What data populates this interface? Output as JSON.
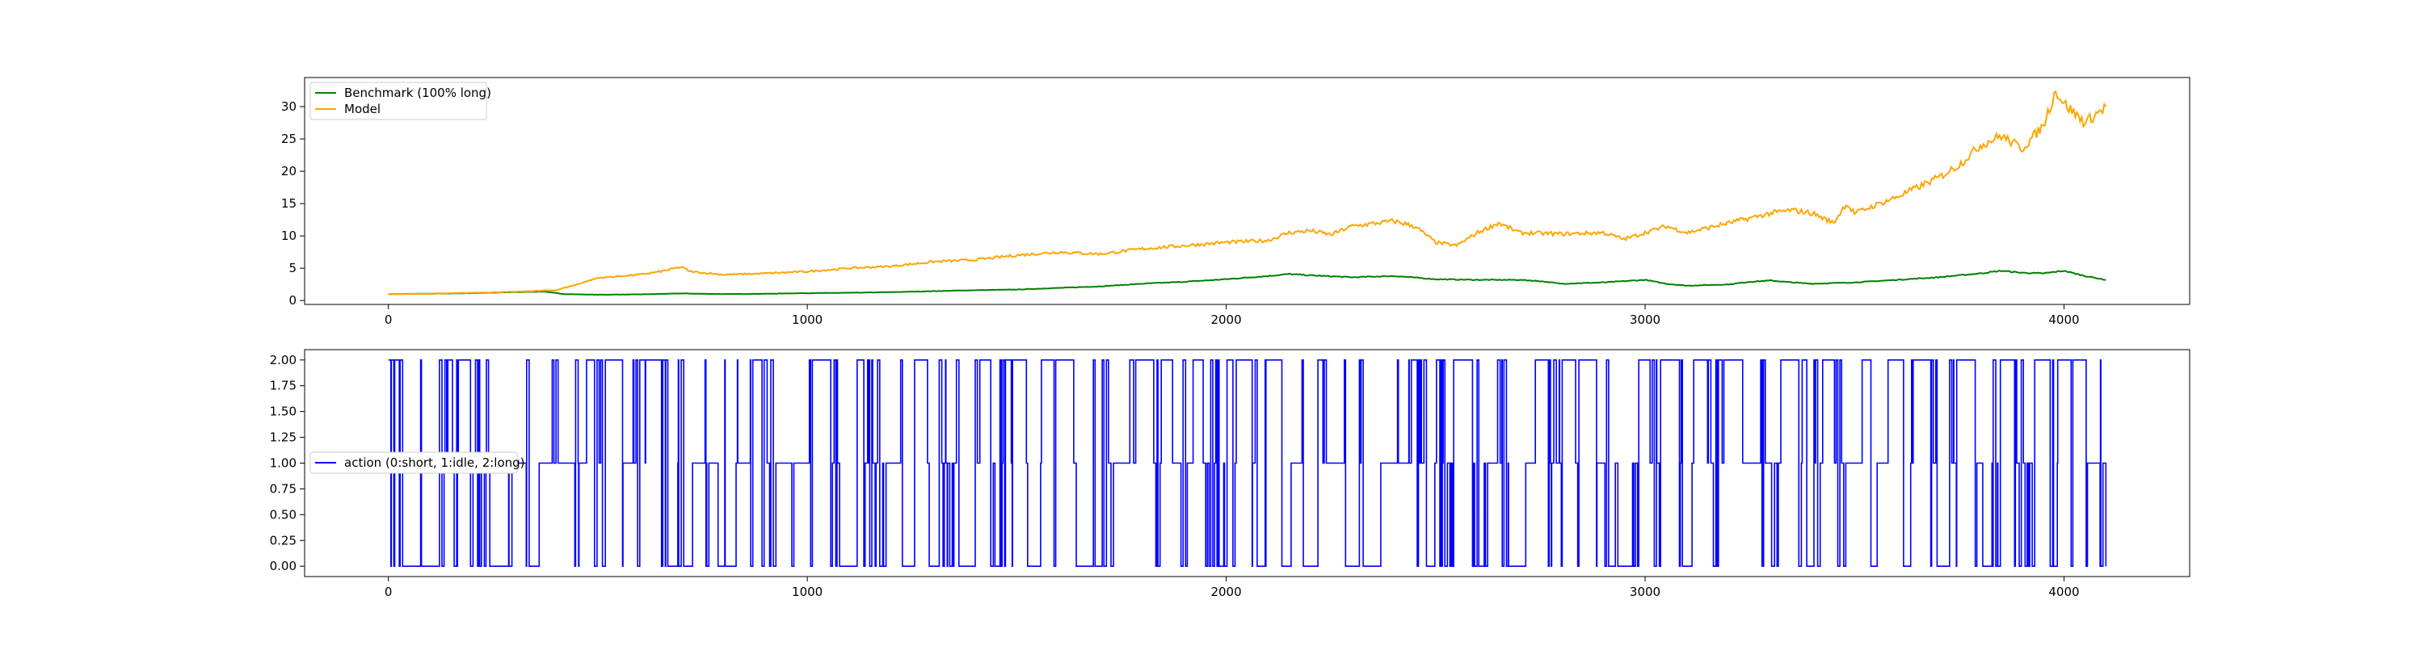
{
  "chart_data": [
    {
      "type": "line",
      "x_range": [
        0,
        4100
      ],
      "xlim": [
        -200,
        4300
      ],
      "ylim": [
        -0.6,
        34.5
      ],
      "xticks": [
        0,
        1000,
        2000,
        3000,
        4000
      ],
      "yticks": [
        0,
        5,
        10,
        15,
        20,
        25,
        30
      ],
      "xlabel": "",
      "ylabel": "",
      "legend_placement": "upper-left",
      "series": [
        {
          "name": "Benchmark (100% long)",
          "color": "#008000",
          "points": [
            [
              0,
              1.0
            ],
            [
              100,
              1.05
            ],
            [
              200,
              1.15
            ],
            [
              300,
              1.3
            ],
            [
              370,
              1.4
            ],
            [
              420,
              1.0
            ],
            [
              500,
              0.9
            ],
            [
              600,
              0.95
            ],
            [
              700,
              1.1
            ],
            [
              800,
              1.0
            ],
            [
              900,
              1.05
            ],
            [
              1000,
              1.15
            ],
            [
              1100,
              1.2
            ],
            [
              1200,
              1.3
            ],
            [
              1300,
              1.45
            ],
            [
              1400,
              1.6
            ],
            [
              1500,
              1.7
            ],
            [
              1600,
              1.95
            ],
            [
              1700,
              2.2
            ],
            [
              1800,
              2.6
            ],
            [
              1900,
              2.9
            ],
            [
              2000,
              3.3
            ],
            [
              2100,
              3.8
            ],
            [
              2150,
              4.1
            ],
            [
              2200,
              3.9
            ],
            [
              2300,
              3.6
            ],
            [
              2400,
              3.8
            ],
            [
              2500,
              3.3
            ],
            [
              2600,
              3.2
            ],
            [
              2700,
              3.2
            ],
            [
              2750,
              3.0
            ],
            [
              2800,
              2.6
            ],
            [
              2900,
              2.8
            ],
            [
              3000,
              3.2
            ],
            [
              3050,
              2.6
            ],
            [
              3100,
              2.3
            ],
            [
              3200,
              2.5
            ],
            [
              3250,
              2.9
            ],
            [
              3300,
              3.1
            ],
            [
              3350,
              2.8
            ],
            [
              3400,
              2.6
            ],
            [
              3500,
              2.8
            ],
            [
              3600,
              3.2
            ],
            [
              3700,
              3.6
            ],
            [
              3800,
              4.2
            ],
            [
              3850,
              4.6
            ],
            [
              3900,
              4.3
            ],
            [
              3950,
              4.2
            ],
            [
              4000,
              4.6
            ],
            [
              4050,
              3.8
            ],
            [
              4100,
              3.2
            ]
          ]
        },
        {
          "name": "Model",
          "color": "#ffa500",
          "points": [
            [
              0,
              1.0
            ],
            [
              100,
              1.05
            ],
            [
              200,
              1.2
            ],
            [
              300,
              1.35
            ],
            [
              400,
              1.6
            ],
            [
              450,
              2.5
            ],
            [
              500,
              3.5
            ],
            [
              600,
              4.0
            ],
            [
              650,
              4.5
            ],
            [
              700,
              5.2
            ],
            [
              720,
              4.5
            ],
            [
              800,
              4.0
            ],
            [
              900,
              4.2
            ],
            [
              1000,
              4.5
            ],
            [
              1100,
              5.0
            ],
            [
              1200,
              5.3
            ],
            [
              1300,
              6.0
            ],
            [
              1400,
              6.3
            ],
            [
              1500,
              7.0
            ],
            [
              1600,
              7.5
            ],
            [
              1700,
              7.2
            ],
            [
              1800,
              8.0
            ],
            [
              1900,
              8.5
            ],
            [
              2000,
              9.0
            ],
            [
              2100,
              9.3
            ],
            [
              2150,
              10.5
            ],
            [
              2200,
              10.8
            ],
            [
              2250,
              10.2
            ],
            [
              2300,
              11.5
            ],
            [
              2400,
              12.3
            ],
            [
              2450,
              11.5
            ],
            [
              2500,
              9.0
            ],
            [
              2550,
              8.5
            ],
            [
              2600,
              10.5
            ],
            [
              2650,
              12.0
            ],
            [
              2700,
              10.5
            ],
            [
              2800,
              10.3
            ],
            [
              2900,
              10.5
            ],
            [
              2950,
              9.5
            ],
            [
              3000,
              10.5
            ],
            [
              3050,
              11.5
            ],
            [
              3100,
              10.5
            ],
            [
              3200,
              12.0
            ],
            [
              3300,
              13.5
            ],
            [
              3350,
              14.0
            ],
            [
              3400,
              13.5
            ],
            [
              3450,
              12.0
            ],
            [
              3480,
              15.0
            ],
            [
              3500,
              13.5
            ],
            [
              3600,
              16.0
            ],
            [
              3700,
              19.0
            ],
            [
              3750,
              21.0
            ],
            [
              3800,
              24.0
            ],
            [
              3850,
              25.5
            ],
            [
              3900,
              23.5
            ],
            [
              3950,
              27.0
            ],
            [
              3980,
              32.5
            ],
            [
              4000,
              30.5
            ],
            [
              4050,
              27.5
            ],
            [
              4100,
              30.0
            ]
          ]
        }
      ]
    },
    {
      "type": "line",
      "x_range": [
        0,
        4100
      ],
      "xlim": [
        -200,
        4300
      ],
      "ylim": [
        -0.1,
        2.1
      ],
      "xticks": [
        0,
        1000,
        2000,
        3000,
        4000
      ],
      "yticks": [
        "0.00",
        "0.25",
        "0.50",
        "0.75",
        "1.00",
        "1.25",
        "1.50",
        "1.75",
        "2.00"
      ],
      "xlabel": "",
      "ylabel": "",
      "legend_placement": "center-left",
      "series": [
        {
          "name": "action (0:short, 1:idle, 2:long)",
          "color": "#0000ff",
          "levels": [
            0,
            1,
            2
          ],
          "steps": 4100
        }
      ]
    }
  ]
}
